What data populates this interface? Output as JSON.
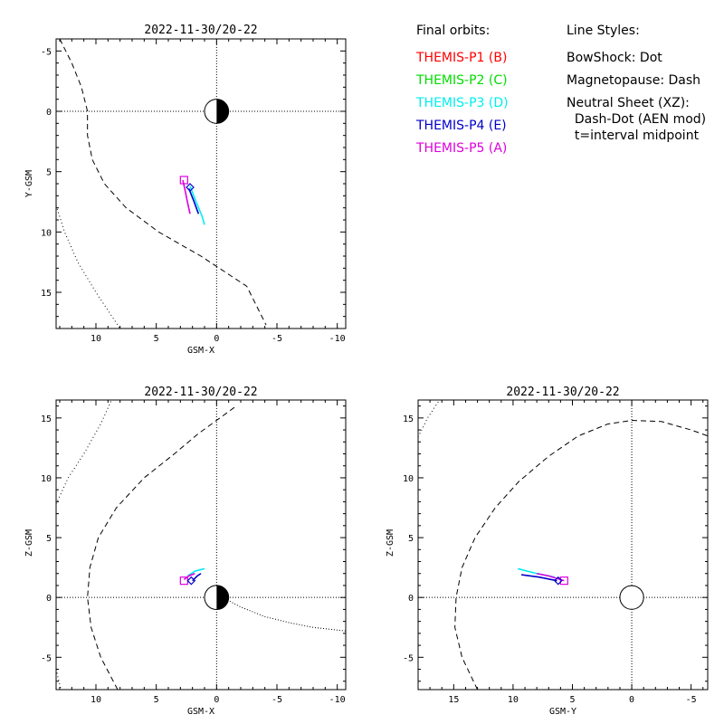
{
  "legend": {
    "heading": "Final orbits:",
    "probes": [
      {
        "label": "THEMIS-P1 (B)",
        "color": "#ff0000"
      },
      {
        "label": "THEMIS-P2 (C)",
        "color": "#00dd00"
      },
      {
        "label": "THEMIS-P3 (D)",
        "color": "#00eeee"
      },
      {
        "label": "THEMIS-P4 (E)",
        "color": "#0000cc"
      },
      {
        "label": "THEMIS-P5 (A)",
        "color": "#dd00dd"
      }
    ],
    "styles_heading": "Line Styles:",
    "styles": [
      "BowShock: Dot",
      "Magnetopause: Dash",
      "Neutral Sheet (XZ):",
      "  Dash-Dot (AEN mod)",
      "  t=interval midpoint"
    ]
  },
  "chart_data": [
    {
      "type": "line",
      "title": "2022-11-30/20-22",
      "xlabel": "GSM-X",
      "ylabel": "Y-GSM",
      "xlim": [
        13.3,
        -10.7
      ],
      "ylim": [
        18,
        -6
      ],
      "xticks": [
        10,
        5,
        0,
        -5,
        -10
      ],
      "yticks": [
        -5,
        0,
        5,
        10,
        15
      ],
      "earth": true,
      "series": [
        {
          "name": "Magnetopause",
          "style": "dash",
          "x": [
            13.0,
            12.0,
            11.2,
            10.7,
            10.7,
            10.3,
            9.3,
            7.5,
            4.8,
            1.3,
            -2.5,
            -4.1
          ],
          "y": [
            -6.0,
            -4.0,
            -2.0,
            0.0,
            2.0,
            4.0,
            6.0,
            8.0,
            10.0,
            12.0,
            14.5,
            17.7
          ]
        },
        {
          "name": "BowShock",
          "style": "dot",
          "x": [
            13.3,
            12.6,
            11.5,
            10.0,
            8.0
          ],
          "y": [
            7.8,
            10.0,
            12.5,
            15.0,
            18.0
          ]
        },
        {
          "name": "THEMIS-P3 (D)",
          "color": "#00eeee",
          "x": [
            2.2,
            1.7,
            1.2,
            1.0
          ],
          "y": [
            6.2,
            7.5,
            8.7,
            9.4
          ]
        },
        {
          "name": "THEMIS-P4 (E)",
          "color": "#0000cc",
          "x": [
            2.3,
            1.9,
            1.5
          ],
          "y": [
            6.4,
            7.4,
            8.5
          ]
        },
        {
          "name": "THEMIS-P5 (A)",
          "color": "#dd00dd",
          "x": [
            2.8,
            2.6,
            2.4,
            2.2
          ],
          "y": [
            5.7,
            6.6,
            7.6,
            8.5
          ]
        }
      ],
      "markers": [
        {
          "shape": "square",
          "color": "#dd00dd",
          "x": 2.7,
          "y": 5.7
        },
        {
          "shape": "diamond",
          "color": "#0000cc",
          "x": 2.2,
          "y": 6.3
        }
      ]
    },
    {
      "type": "line",
      "title": "2022-11-30/20-22",
      "xlabel": "GSM-X",
      "ylabel": "Z-GSM",
      "xlim": [
        13.3,
        -10.7
      ],
      "ylim": [
        -7.7,
        16.5
      ],
      "xticks": [
        10,
        5,
        0,
        -5,
        -10
      ],
      "yticks": [
        -5,
        0,
        5,
        10,
        15
      ],
      "earth": true,
      "series": [
        {
          "name": "Magnetopause",
          "style": "dash",
          "x": [
            8.2,
            9.6,
            10.4,
            10.7,
            10.5,
            9.8,
            8.3,
            6.0,
            3.5,
            1.5,
            -1.5
          ],
          "y": [
            -7.7,
            -5.0,
            -2.5,
            0.0,
            2.5,
            5.0,
            7.5,
            10.0,
            12.0,
            13.7,
            15.9
          ]
        },
        {
          "name": "BowShock",
          "style": "dot",
          "x": [
            13.3,
            12.3,
            11.0,
            9.6,
            8.7
          ],
          "y": [
            7.8,
            10.0,
            12.0,
            14.5,
            16.5
          ]
        },
        {
          "name": "BowShock",
          "style": "dot",
          "x": [
            13.3,
            12.9
          ],
          "y": [
            -6.0,
            -7.7
          ]
        },
        {
          "name": "Neutral Sheet",
          "style": "dashdot",
          "x": [
            -0.5,
            -2.0,
            -4.0,
            -6.0,
            -8.0,
            -10.7
          ],
          "y": [
            0.0,
            -0.8,
            -1.6,
            -2.1,
            -2.5,
            -2.8
          ]
        },
        {
          "name": "THEMIS-P3 (D)",
          "color": "#00eeee",
          "x": [
            2.4,
            1.8,
            1.0
          ],
          "y": [
            1.8,
            2.2,
            2.4
          ]
        },
        {
          "name": "THEMIS-P4 (E)",
          "color": "#0000cc",
          "x": [
            2.0,
            1.6,
            1.3
          ],
          "y": [
            1.4,
            1.8,
            2.0
          ]
        },
        {
          "name": "THEMIS-P5 (A)",
          "color": "#dd00dd",
          "x": [
            2.7,
            2.3,
            1.8
          ],
          "y": [
            1.5,
            1.8,
            2.0
          ]
        }
      ],
      "markers": [
        {
          "shape": "square",
          "color": "#dd00dd",
          "x": 2.7,
          "y": 1.4
        },
        {
          "shape": "diamond",
          "color": "#0000cc",
          "x": 2.1,
          "y": 1.4
        }
      ]
    },
    {
      "type": "line",
      "title": "2022-11-30/20-22",
      "xlabel": "GSM-Y",
      "ylabel": "Z-GSM",
      "xlim": [
        18,
        -6.4
      ],
      "ylim": [
        -7.7,
        16.5
      ],
      "xticks": [
        15,
        10,
        5,
        0,
        -5
      ],
      "yticks": [
        -5,
        0,
        5,
        10,
        15
      ],
      "earth": "outline",
      "series": [
        {
          "name": "Magnetopause",
          "style": "dash",
          "x": [
            13.0,
            14.3,
            14.9,
            14.8,
            14.3,
            13.2,
            11.5,
            9.5,
            7.0,
            4.5,
            2.0,
            0.0,
            -2.5,
            -5.0,
            -6.4
          ],
          "y": [
            -7.7,
            -5.0,
            -2.5,
            0.0,
            2.5,
            5.0,
            7.5,
            9.7,
            11.8,
            13.5,
            14.5,
            14.8,
            14.7,
            14.0,
            13.5
          ]
        },
        {
          "name": "BowShock",
          "style": "dot",
          "x": [
            18.0,
            17.2,
            16.2
          ],
          "y": [
            13.4,
            15.0,
            16.5
          ]
        },
        {
          "name": "THEMIS-P3 (D)",
          "color": "#00eeee",
          "x": [
            9.6,
            8.0,
            6.5
          ],
          "y": [
            2.4,
            2.0,
            1.7
          ]
        },
        {
          "name": "THEMIS-P4 (E)",
          "color": "#0000cc",
          "x": [
            9.3,
            7.8,
            6.3
          ],
          "y": [
            1.9,
            1.7,
            1.4
          ]
        },
        {
          "name": "THEMIS-P5 (A)",
          "color": "#dd00dd",
          "x": [
            8.0,
            7.0,
            5.7
          ],
          "y": [
            2.0,
            1.8,
            1.4
          ]
        }
      ],
      "markers": [
        {
          "shape": "square",
          "color": "#dd00dd",
          "x": 5.7,
          "y": 1.4
        },
        {
          "shape": "diamond",
          "color": "#0000cc",
          "x": 6.2,
          "y": 1.4
        }
      ]
    }
  ]
}
